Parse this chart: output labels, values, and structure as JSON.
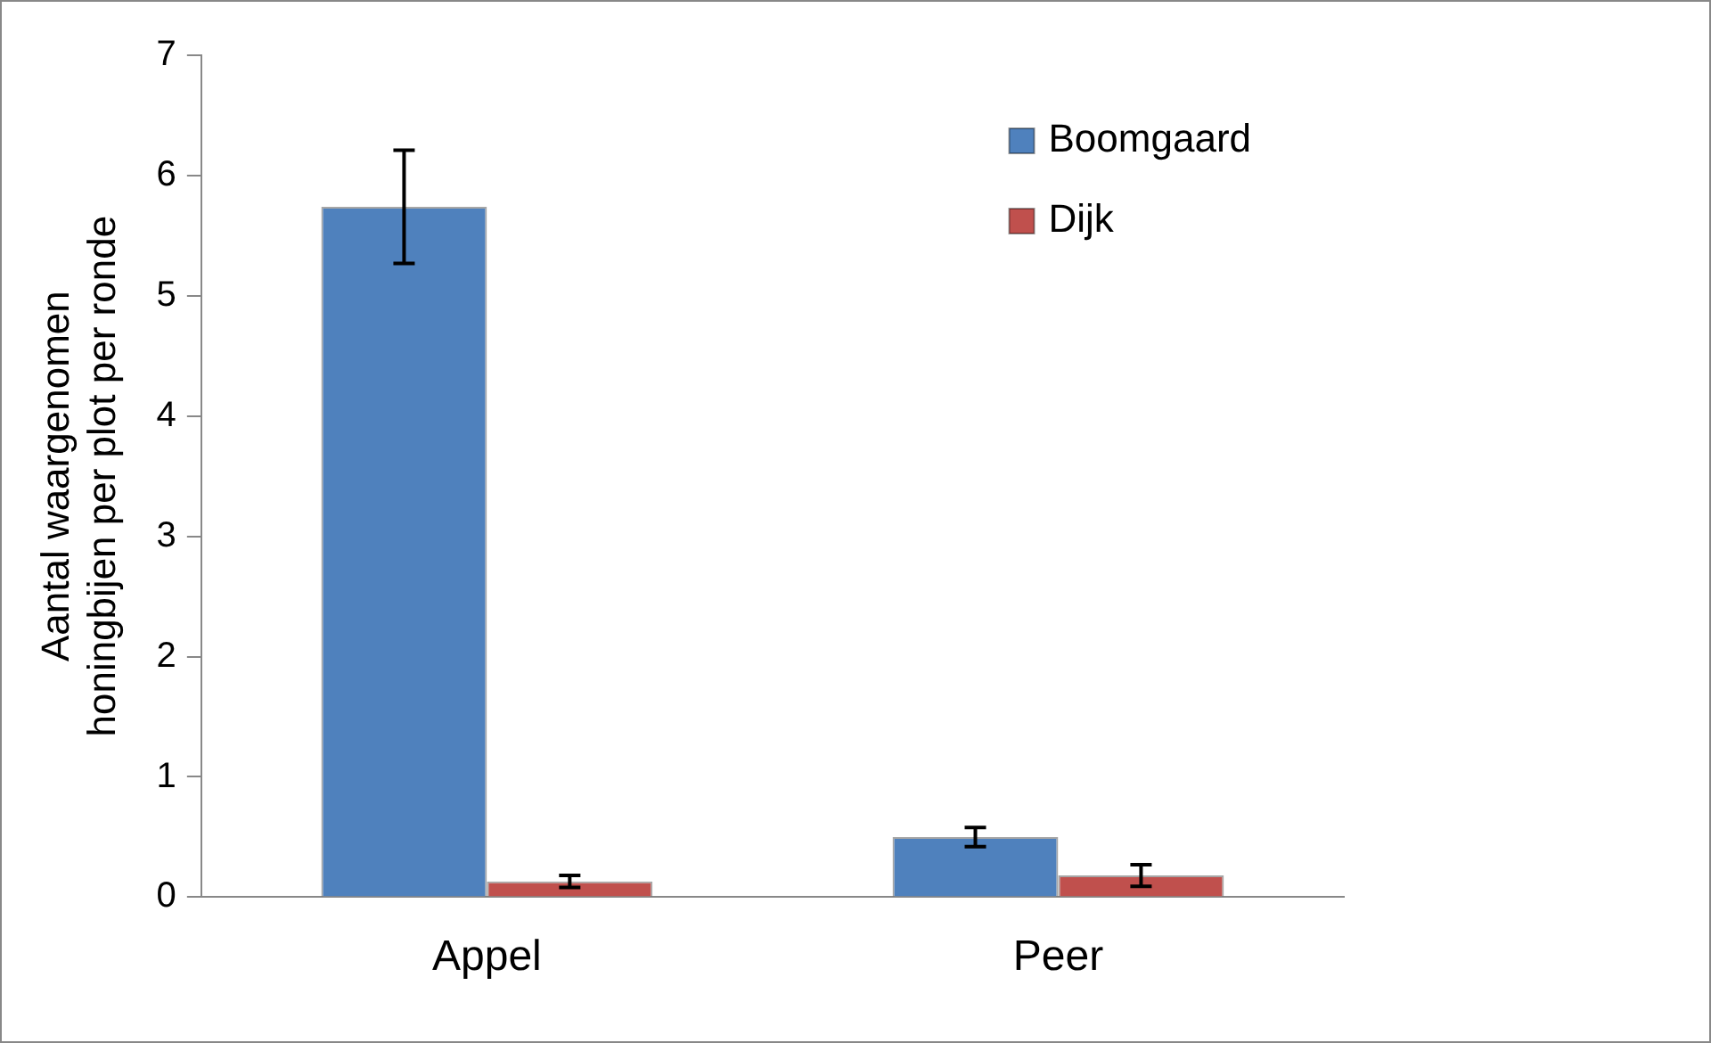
{
  "chart_data": {
    "type": "bar",
    "ylabel": "Aantal waargenomen honingbijen per plot per ronde",
    "categories": [
      "Appel",
      "Peer"
    ],
    "series": [
      {
        "name": "Boomgaard",
        "color": "#4f81bd",
        "values": [
          5.74,
          0.5
        ],
        "errors": [
          0.47,
          0.08
        ]
      },
      {
        "name": "Dijk",
        "color": "#c0504d",
        "values": [
          0.13,
          0.18
        ],
        "errors": [
          0.05,
          0.09
        ]
      }
    ],
    "ylim": [
      0,
      7
    ],
    "yticks": [
      0,
      1,
      2,
      3,
      4,
      5,
      6,
      7
    ],
    "grid": false,
    "legend": "top right"
  }
}
